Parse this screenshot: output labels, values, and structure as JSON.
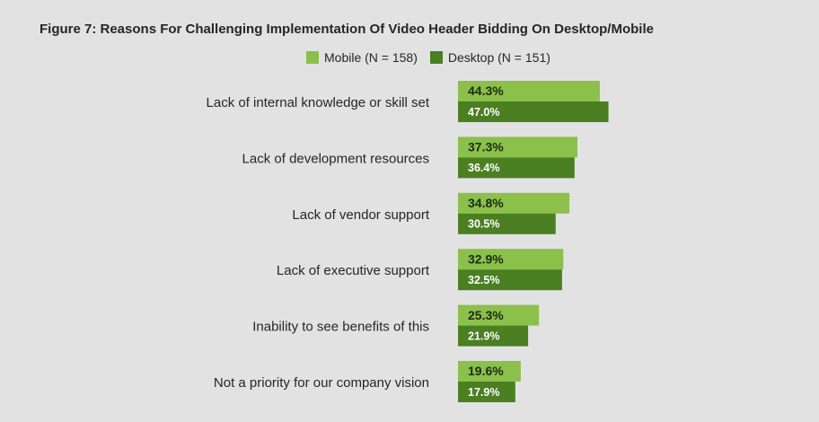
{
  "colors": {
    "mobile": "#8bc04b",
    "desktop": "#4a7f22",
    "background": "#e2e2e2",
    "text": "#262626"
  },
  "chart_data": {
    "type": "bar",
    "orientation": "horizontal",
    "title": "Figure 7: Reasons For Challenging Implementation Of Video Header Bidding On Desktop/Mobile",
    "categories": [
      "Lack of internal knowledge or skill set",
      "Lack of development resources",
      "Lack of vendor support",
      "Lack of executive support",
      "Inability to see benefits of this",
      "Not a priority for our company vision"
    ],
    "series": [
      {
        "name": "Mobile (N = 158)",
        "values": [
          44.3,
          37.3,
          34.8,
          32.9,
          25.3,
          19.6
        ],
        "labels": [
          "44.3%",
          "37.3%",
          "34.8%",
          "32.9%",
          "25.3%",
          "19.6%"
        ]
      },
      {
        "name": "Desktop (N = 151)",
        "values": [
          47.0,
          36.4,
          30.5,
          32.5,
          21.9,
          17.9
        ],
        "labels": [
          "47.0%",
          "36.4%",
          "30.5%",
          "32.5%",
          "21.9%",
          "17.9%"
        ]
      }
    ],
    "legend_position": "top",
    "grid": false,
    "axes_visible": false,
    "unit": "%"
  }
}
